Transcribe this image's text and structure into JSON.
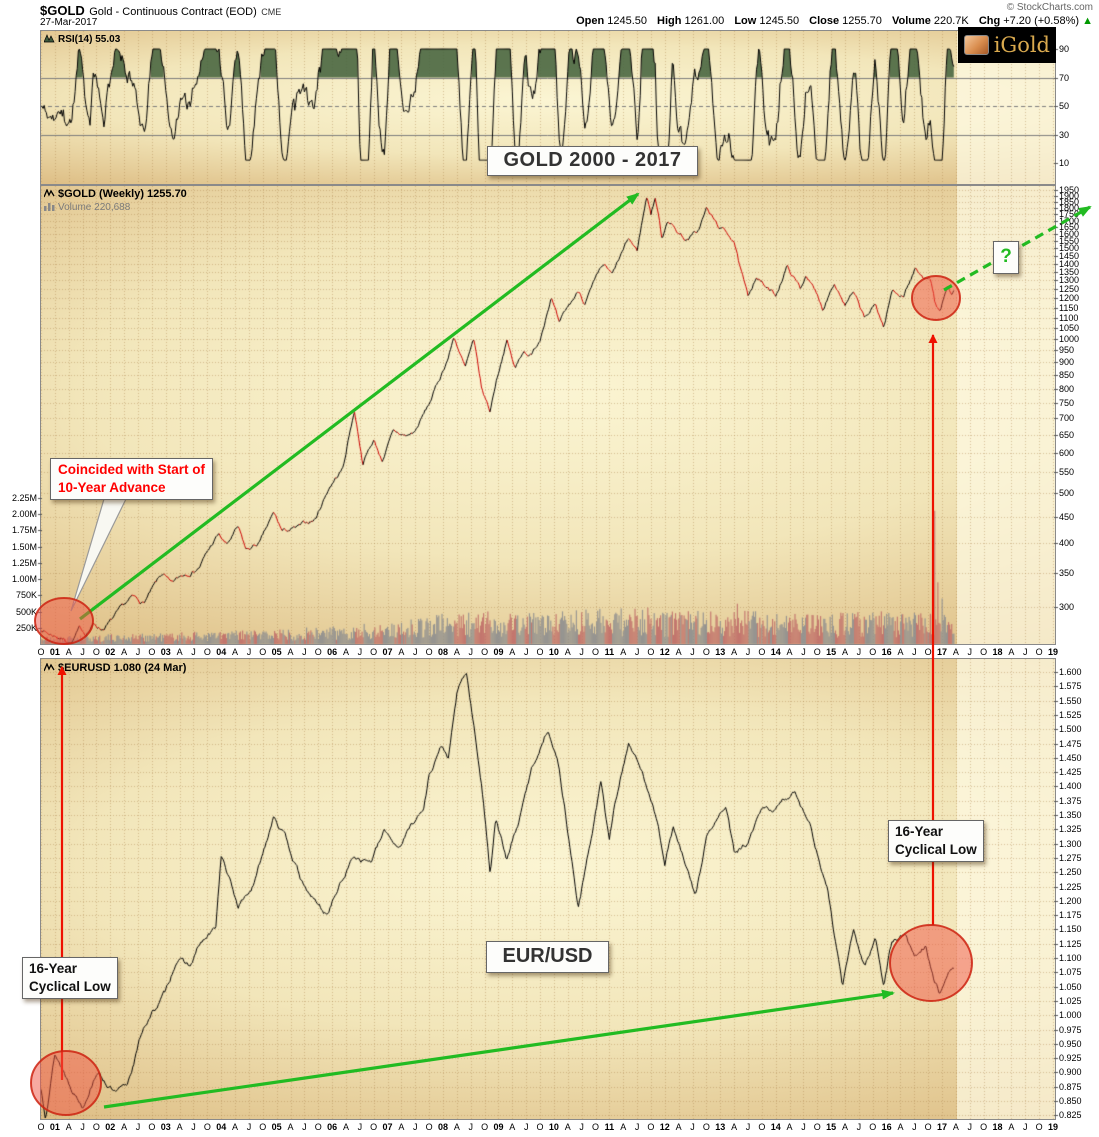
{
  "header": {
    "symbol": "$GOLD",
    "name": "Gold - Continuous Contract (EOD)",
    "exchange": "CME",
    "date": "27-Mar-2017",
    "copyright": "© StockCharts.com",
    "quote": [
      {
        "label": "Open",
        "value": "1245.50"
      },
      {
        "label": "High",
        "value": "1261.00"
      },
      {
        "label": "Low",
        "value": "1245.50"
      },
      {
        "label": "Close",
        "value": "1255.70"
      },
      {
        "label": "Volume",
        "value": "220.7K"
      },
      {
        "label": "Chg",
        "value": "+7.20 (+0.58%)"
      }
    ],
    "chg_arrow": "▲"
  },
  "logo": {
    "text": "iGold"
  },
  "rsi_pane": {
    "label": "RSI(14) 55.03",
    "ticks": [
      "90",
      "70",
      "50",
      "30",
      "10"
    ]
  },
  "gold_pane": {
    "label": "$GOLD (Weekly) 1255.70",
    "volume_label": "Volume 220,688",
    "title_box": "GOLD 2000 - 2017",
    "annotation_lines": [
      "Coincided with Start of",
      "10-Year Advance"
    ],
    "question_mark": "?",
    "price_ticks": [
      1950,
      1900,
      1850,
      1800,
      1750,
      1700,
      1650,
      1600,
      1550,
      1500,
      1450,
      1400,
      1350,
      1300,
      1250,
      1200,
      1150,
      1100,
      1050,
      1000,
      950,
      900,
      850,
      800,
      750,
      700,
      650,
      600,
      550,
      500,
      450,
      400,
      350,
      300
    ],
    "volume_ticks": [
      "2.25M",
      "2.00M",
      "1.75M",
      "1.50M",
      "1.25M",
      "1.00M",
      "750K",
      "500K",
      "250K"
    ]
  },
  "eur_pane": {
    "label": "$EURUSD 1.080 (24 Mar)",
    "title_box": "EUR/USD",
    "low_left_lines": [
      "16-Year",
      "Cyclical Low"
    ],
    "low_right_lines": [
      "16-Year",
      "Cyclical Low"
    ],
    "price_ticks": [
      "1.600",
      "1.575",
      "1.550",
      "1.525",
      "1.500",
      "1.475",
      "1.450",
      "1.425",
      "1.400",
      "1.375",
      "1.350",
      "1.325",
      "1.300",
      "1.275",
      "1.250",
      "1.225",
      "1.200",
      "1.175",
      "1.150",
      "1.125",
      "1.100",
      "1.075",
      "1.050",
      "1.025",
      "1.000",
      "0.975",
      "0.950",
      "0.925",
      "0.900",
      "0.875",
      "0.850",
      "0.825"
    ]
  },
  "xaxis": {
    "labels": [
      "O",
      "01",
      "A",
      "J",
      "O",
      "02",
      "A",
      "J",
      "O",
      "03",
      "A",
      "J",
      "O",
      "04",
      "A",
      "J",
      "O",
      "05",
      "A",
      "J",
      "O",
      "06",
      "A",
      "J",
      "O",
      "07",
      "A",
      "J",
      "O",
      "08",
      "A",
      "J",
      "O",
      "09",
      "A",
      "J",
      "O",
      "10",
      "A",
      "J",
      "O",
      "11",
      "A",
      "J",
      "O",
      "12",
      "A",
      "J",
      "O",
      "13",
      "A",
      "J",
      "O",
      "14",
      "A",
      "J",
      "O",
      "15",
      "A",
      "J",
      "O",
      "16",
      "A",
      "J",
      "O",
      "17",
      "A",
      "J",
      "O",
      "18",
      "A",
      "J",
      "O",
      "19"
    ]
  },
  "colors": {
    "background_center": "#fbf5d3",
    "background_edge": "#c59a5b",
    "grid": "#a87f46",
    "price_line": "#000000",
    "price_down": "#cc0000",
    "volume_bar": "#8f8f8f",
    "volume_bar_down": "#c0706a",
    "green": "#22bb22",
    "chg_green": "#009900",
    "red": "#ee1100",
    "red_circle_fill": "rgba(239,83,68,0.5)",
    "red_circle_stroke": "rgba(204,34,17,0.85)",
    "rsi_fill": "#4a6741",
    "annotation_red": "#ff0000",
    "axis_text": "#000000"
  },
  "chart_data": [
    {
      "id": "rsi",
      "type": "line",
      "title": "RSI(14)",
      "last_value": 55.03,
      "ylim": [
        0,
        100
      ],
      "reference_levels": [
        70,
        50,
        30
      ],
      "ytick_labels": [
        90,
        70,
        50,
        30,
        10
      ],
      "note": "Oscillates mostly 30-75 across 2000-2017; peaks above 70 shaded dark green; deep trough near 15 in mid-2013"
    },
    {
      "id": "gold_weekly",
      "type": "line",
      "title": "GOLD 2000 - 2017",
      "x_range": [
        2000.75,
        2019.0
      ],
      "x_data_end": 2017.23,
      "y_scale": "log",
      "ylim": [
        253,
        1995
      ],
      "last_value": 1255.7,
      "anchors": [
        [
          2000.75,
          272
        ],
        [
          2000.9,
          266
        ],
        [
          2001.1,
          262
        ],
        [
          2001.3,
          256
        ],
        [
          2001.45,
          272
        ],
        [
          2001.55,
          266
        ],
        [
          2001.7,
          278
        ],
        [
          2001.85,
          272
        ],
        [
          2002.0,
          281
        ],
        [
          2002.4,
          312
        ],
        [
          2002.6,
          305
        ],
        [
          2002.95,
          348
        ],
        [
          2003.1,
          330
        ],
        [
          2003.3,
          345
        ],
        [
          2003.6,
          360
        ],
        [
          2003.95,
          415
        ],
        [
          2004.1,
          395
        ],
        [
          2004.3,
          427
        ],
        [
          2004.45,
          385
        ],
        [
          2004.7,
          400
        ],
        [
          2004.95,
          455
        ],
        [
          2005.1,
          420
        ],
        [
          2005.4,
          428
        ],
        [
          2005.7,
          445
        ],
        [
          2005.95,
          515
        ],
        [
          2006.2,
          560
        ],
        [
          2006.4,
          725
        ],
        [
          2006.55,
          575
        ],
        [
          2006.75,
          635
        ],
        [
          2006.9,
          580
        ],
        [
          2007.1,
          655
        ],
        [
          2007.35,
          645
        ],
        [
          2007.5,
          660
        ],
        [
          2007.75,
          745
        ],
        [
          2007.95,
          840
        ],
        [
          2008.1,
          925
        ],
        [
          2008.2,
          1010
        ],
        [
          2008.4,
          875
        ],
        [
          2008.55,
          985
        ],
        [
          2008.7,
          790
        ],
        [
          2008.85,
          720
        ],
        [
          2008.95,
          820
        ],
        [
          2009.15,
          995
        ],
        [
          2009.3,
          870
        ],
        [
          2009.45,
          950
        ],
        [
          2009.6,
          930
        ],
        [
          2009.75,
          1000
        ],
        [
          2009.95,
          1215
        ],
        [
          2010.1,
          1060
        ],
        [
          2010.2,
          1120
        ],
        [
          2010.45,
          1240
        ],
        [
          2010.55,
          1180
        ],
        [
          2010.9,
          1385
        ],
        [
          2011.05,
          1320
        ],
        [
          2011.35,
          1560
        ],
        [
          2011.5,
          1480
        ],
        [
          2011.68,
          1900
        ],
        [
          2011.75,
          1760
        ],
        [
          2011.83,
          1890
        ],
        [
          2011.95,
          1565
        ],
        [
          2012.05,
          1720
        ],
        [
          2012.2,
          1630
        ],
        [
          2012.4,
          1560
        ],
        [
          2012.6,
          1620
        ],
        [
          2012.75,
          1790
        ],
        [
          2012.95,
          1660
        ],
        [
          2013.1,
          1610
        ],
        [
          2013.25,
          1560
        ],
        [
          2013.35,
          1380
        ],
        [
          2013.5,
          1195
        ],
        [
          2013.65,
          1330
        ],
        [
          2013.85,
          1250
        ],
        [
          2014.0,
          1210
        ],
        [
          2014.2,
          1385
        ],
        [
          2014.45,
          1250
        ],
        [
          2014.55,
          1340
        ],
        [
          2014.85,
          1140
        ],
        [
          2015.05,
          1300
        ],
        [
          2015.25,
          1170
        ],
        [
          2015.4,
          1225
        ],
        [
          2015.6,
          1090
        ],
        [
          2015.8,
          1160
        ],
        [
          2015.95,
          1052
        ],
        [
          2016.1,
          1240
        ],
        [
          2016.3,
          1215
        ],
        [
          2016.52,
          1370
        ],
        [
          2016.65,
          1310
        ],
        [
          2016.78,
          1340
        ],
        [
          2016.87,
          1180
        ],
        [
          2016.95,
          1128
        ],
        [
          2017.1,
          1250
        ],
        [
          2017.18,
          1200
        ],
        [
          2017.23,
          1255.7
        ]
      ]
    },
    {
      "id": "gold_volume",
      "type": "bar",
      "unit": "thousand contracts",
      "last_value": 220.688,
      "base_anchors": [
        [
          2000.75,
          70
        ],
        [
          2002,
          90
        ],
        [
          2004,
          120
        ],
        [
          2006,
          160
        ],
        [
          2007,
          200
        ],
        [
          2008,
          280
        ],
        [
          2009,
          290
        ],
        [
          2010,
          300
        ],
        [
          2011,
          330
        ],
        [
          2012,
          310
        ],
        [
          2013,
          330
        ],
        [
          2014,
          290
        ],
        [
          2015,
          280
        ],
        [
          2016,
          300
        ],
        [
          2017.2,
          260
        ]
      ],
      "spikes": [
        [
          2008.8,
          500
        ],
        [
          2009.9,
          430
        ],
        [
          2010.3,
          450
        ],
        [
          2011.7,
          560
        ],
        [
          2012.1,
          420
        ],
        [
          2013.3,
          620
        ],
        [
          2014.8,
          430
        ],
        [
          2015.6,
          420
        ],
        [
          2016.5,
          480
        ],
        [
          2016.87,
          2050
        ],
        [
          2016.93,
          950
        ],
        [
          2017.0,
          700
        ]
      ]
    },
    {
      "id": "eurusd",
      "type": "line",
      "title": "EUR/USD",
      "x_range": [
        2000.75,
        2019.0
      ],
      "x_data_end": 2017.23,
      "ylim": [
        0.823,
        1.602
      ],
      "last_value": 1.08,
      "anchors": [
        [
          2000.75,
          0.87
        ],
        [
          2000.83,
          0.827
        ],
        [
          2001.0,
          0.935
        ],
        [
          2001.25,
          0.885
        ],
        [
          2001.5,
          0.843
        ],
        [
          2001.75,
          0.905
        ],
        [
          2002.1,
          0.862
        ],
        [
          2002.3,
          0.875
        ],
        [
          2002.6,
          0.98
        ],
        [
          2003.0,
          1.04
        ],
        [
          2003.2,
          1.1
        ],
        [
          2003.45,
          1.085
        ],
        [
          2003.6,
          1.12
        ],
        [
          2003.9,
          1.15
        ],
        [
          2004.0,
          1.28
        ],
        [
          2004.3,
          1.19
        ],
        [
          2004.6,
          1.23
        ],
        [
          2004.8,
          1.3
        ],
        [
          2004.95,
          1.355
        ],
        [
          2005.2,
          1.3
        ],
        [
          2005.5,
          1.22
        ],
        [
          2005.9,
          1.175
        ],
        [
          2006.05,
          1.21
        ],
        [
          2006.4,
          1.28
        ],
        [
          2006.7,
          1.27
        ],
        [
          2006.95,
          1.32
        ],
        [
          2007.2,
          1.295
        ],
        [
          2007.5,
          1.345
        ],
        [
          2007.65,
          1.36
        ],
        [
          2007.75,
          1.42
        ],
        [
          2007.95,
          1.47
        ],
        [
          2008.1,
          1.45
        ],
        [
          2008.25,
          1.56
        ],
        [
          2008.42,
          1.598
        ],
        [
          2008.7,
          1.4
        ],
        [
          2008.85,
          1.25
        ],
        [
          2008.95,
          1.35
        ],
        [
          2009.15,
          1.27
        ],
        [
          2009.4,
          1.35
        ],
        [
          2009.6,
          1.43
        ],
        [
          2009.9,
          1.505
        ],
        [
          2010.1,
          1.43
        ],
        [
          2010.2,
          1.36
        ],
        [
          2010.44,
          1.19
        ],
        [
          2010.6,
          1.27
        ],
        [
          2010.85,
          1.41
        ],
        [
          2011.0,
          1.3
        ],
        [
          2011.1,
          1.37
        ],
        [
          2011.35,
          1.48
        ],
        [
          2011.6,
          1.42
        ],
        [
          2011.8,
          1.37
        ],
        [
          2012.0,
          1.27
        ],
        [
          2012.15,
          1.33
        ],
        [
          2012.55,
          1.205
        ],
        [
          2012.75,
          1.31
        ],
        [
          2013.1,
          1.365
        ],
        [
          2013.25,
          1.28
        ],
        [
          2013.5,
          1.3
        ],
        [
          2013.75,
          1.355
        ],
        [
          2014.0,
          1.36
        ],
        [
          2014.35,
          1.393
        ],
        [
          2014.6,
          1.34
        ],
        [
          2014.95,
          1.21
        ],
        [
          2015.2,
          1.048
        ],
        [
          2015.4,
          1.145
        ],
        [
          2015.6,
          1.085
        ],
        [
          2015.8,
          1.135
        ],
        [
          2015.95,
          1.055
        ],
        [
          2016.1,
          1.13
        ],
        [
          2016.35,
          1.14
        ],
        [
          2016.5,
          1.1
        ],
        [
          2016.7,
          1.124
        ],
        [
          2016.85,
          1.06
        ],
        [
          2016.95,
          1.04
        ],
        [
          2017.05,
          1.065
        ],
        [
          2017.15,
          1.075
        ],
        [
          2017.23,
          1.08
        ]
      ]
    }
  ]
}
